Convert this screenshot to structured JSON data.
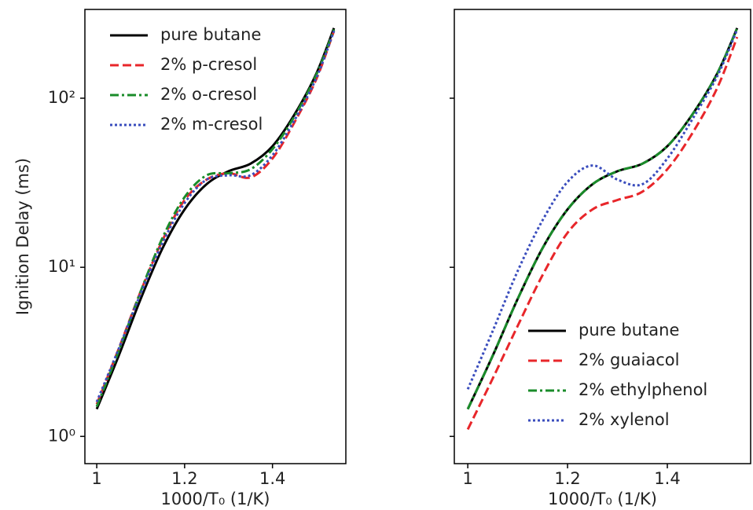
{
  "chart_data": [
    {
      "type": "line",
      "y_label": "Ignition Delay (ms)",
      "x_label": "1000/T₀ (1/K)",
      "x": [
        1.0,
        1.05,
        1.1,
        1.15,
        1.2,
        1.25,
        1.3,
        1.35,
        1.4,
        1.45,
        1.5,
        1.54
      ],
      "series": [
        {
          "name": "pure butane",
          "color": "#000000",
          "linestyle": "solid",
          "values": [
            1.45,
            3.0,
            6.5,
            13,
            22,
            31,
            37,
            41,
            52,
            80,
            140,
            260
          ]
        },
        {
          "name": "2% p-cresol",
          "color": "#e8262a",
          "linestyle": "dashed",
          "values": [
            1.55,
            3.3,
            7.2,
            14.5,
            25,
            33,
            36,
            34,
            44,
            72,
            130,
            250
          ]
        },
        {
          "name": "2% o-cresol",
          "color": "#1a8c2a",
          "linestyle": "dashdot",
          "values": [
            1.5,
            3.2,
            7.2,
            15,
            26,
            35,
            36,
            38,
            50,
            78,
            138,
            255
          ]
        },
        {
          "name": "2% m-cresol",
          "color": "#3a4dbd",
          "linestyle": "dotted",
          "values": [
            1.6,
            3.3,
            7.0,
            14,
            24,
            33,
            35,
            35,
            46,
            74,
            132,
            250
          ]
        }
      ],
      "xlim": [
        0.973,
        1.567
      ],
      "xticks": [
        1.0,
        1.2,
        1.4
      ],
      "ylim": [
        0.69,
        335
      ],
      "yscale": "log",
      "yticks": [
        {
          "value": 1,
          "label": "10⁰"
        },
        {
          "value": 10,
          "label": "10¹"
        },
        {
          "value": 100,
          "label": "10²"
        }
      ],
      "show_ytick_labels": true,
      "legend": "upper-left"
    },
    {
      "type": "line",
      "x_label": "1000/T₀ (1/K)",
      "x": [
        1.0,
        1.05,
        1.1,
        1.15,
        1.2,
        1.25,
        1.3,
        1.35,
        1.4,
        1.45,
        1.5,
        1.54
      ],
      "series": [
        {
          "name": "pure butane",
          "color": "#000000",
          "linestyle": "solid",
          "values": [
            1.45,
            3.0,
            6.5,
            13,
            22,
            31,
            37,
            41,
            52,
            80,
            140,
            260
          ]
        },
        {
          "name": "2% guaiacol",
          "color": "#e8262a",
          "linestyle": "dashed",
          "values": [
            1.1,
            2.2,
            4.5,
            9,
            16,
            22,
            25,
            28,
            38,
            62,
            115,
            230
          ]
        },
        {
          "name": "2% ethylphenol",
          "color": "#1a8c2a",
          "linestyle": "dashdot",
          "values": [
            1.45,
            3.0,
            6.5,
            13,
            22,
            31,
            37,
            41,
            52,
            80,
            140,
            260
          ]
        },
        {
          "name": "2% xylenol",
          "color": "#3a4dbd",
          "linestyle": "dotted",
          "values": [
            1.9,
            4.2,
            9.5,
            19,
            32,
            40,
            33,
            31,
            44,
            75,
            135,
            255
          ]
        }
      ],
      "xlim": [
        0.973,
        1.567
      ],
      "xticks": [
        1.0,
        1.2,
        1.4
      ],
      "ylim": [
        0.69,
        335
      ],
      "yscale": "log",
      "yticks": [
        1,
        10,
        100
      ],
      "show_ytick_labels": false,
      "legend": "lower-right"
    }
  ]
}
